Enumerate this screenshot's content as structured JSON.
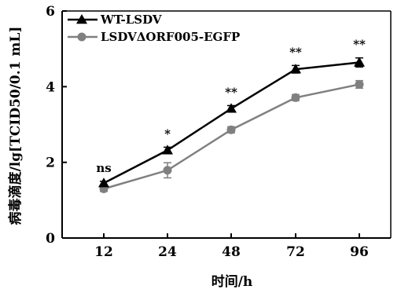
{
  "chart_data": {
    "type": "line",
    "title": "",
    "xlabel": "时间/h",
    "ylabel": "病毒滴度/lg[TCID50/0.1 mL]",
    "x": [
      12,
      24,
      48,
      72,
      96
    ],
    "x_tick_labels": [
      "12",
      "24",
      "48",
      "72",
      "96"
    ],
    "ylim": [
      0,
      6
    ],
    "y_ticks": [
      0,
      2,
      4,
      6
    ],
    "grid": false,
    "legend_position": "top-left",
    "series": [
      {
        "name": "WT-LSDV",
        "marker": "triangle",
        "color": "#000000",
        "values": [
          1.45,
          2.32,
          3.42,
          4.46,
          4.64
        ],
        "errors": [
          0.05,
          0.08,
          0.08,
          0.1,
          0.12
        ]
      },
      {
        "name": "LSDVΔORF005-EGFP",
        "marker": "circle",
        "color": "#808080",
        "values": [
          1.3,
          1.79,
          2.86,
          3.71,
          4.06
        ],
        "errors": [
          0.07,
          0.2,
          0.08,
          0.08,
          0.1
        ]
      }
    ],
    "annotations": [
      "ns",
      "*",
      "**",
      "**",
      "**"
    ]
  }
}
